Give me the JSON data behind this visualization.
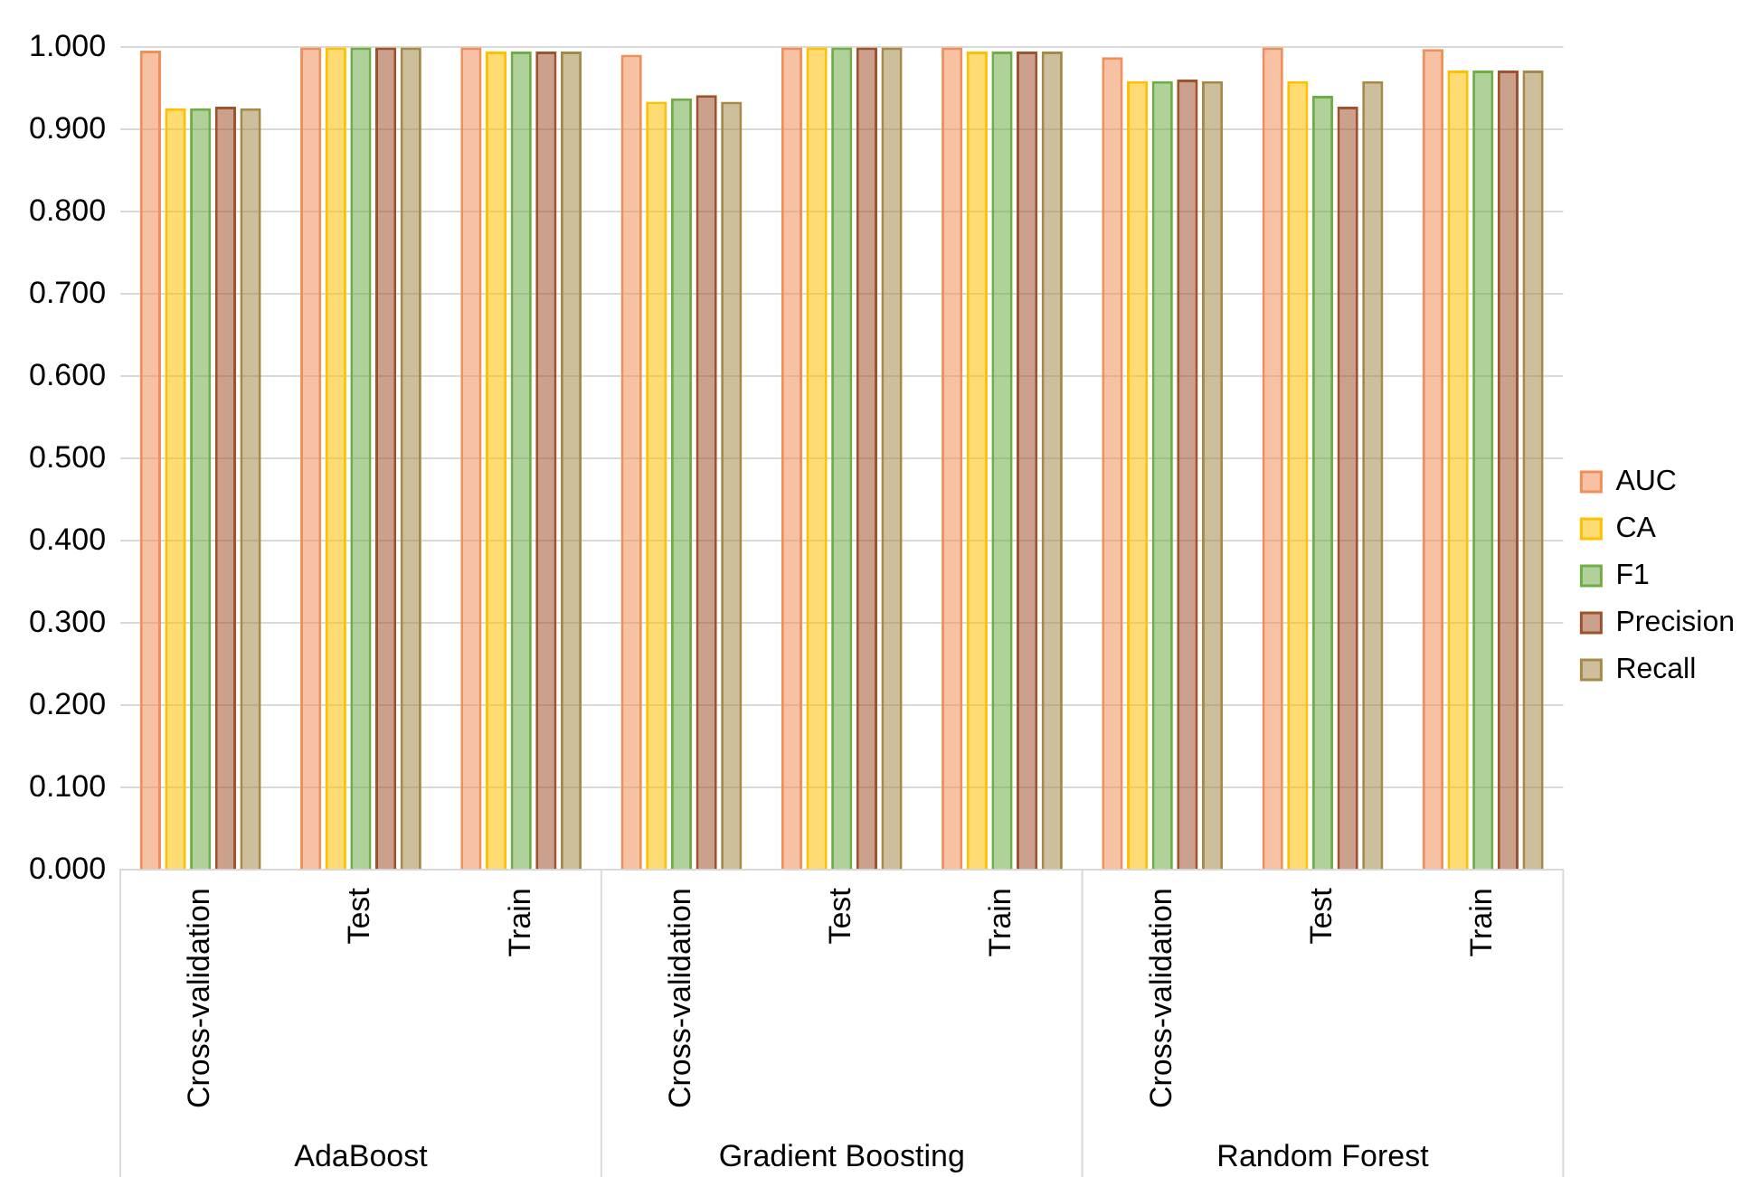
{
  "chart_data": {
    "type": "bar",
    "categories": [
      "Cross-validation",
      "Test",
      "Train",
      "Cross-validation",
      "Test",
      "Train",
      "Cross-validation",
      "Test",
      "Train"
    ],
    "annotations": [
      "AdaBoost",
      "Gradient Boosting",
      "Random Forest"
    ],
    "series": [
      {
        "name": "AUC",
        "color": "#f08f5a",
        "values": [
          0.996,
          1.0,
          1.0,
          0.991,
          1.0,
          1.0,
          0.988,
          1.0,
          0.998
        ]
      },
      {
        "name": "CA",
        "color": "#ffc000",
        "values": [
          0.926,
          1.0,
          0.995,
          0.934,
          1.0,
          0.995,
          0.959,
          0.959,
          0.972
        ]
      },
      {
        "name": "F1",
        "color": "#70ad47",
        "values": [
          0.926,
          1.0,
          0.995,
          0.938,
          1.0,
          0.995,
          0.959,
          0.941,
          0.972
        ]
      },
      {
        "name": "Precision",
        "color": "#a0522d",
        "values": [
          0.928,
          1.0,
          0.995,
          0.942,
          1.0,
          0.995,
          0.961,
          0.928,
          0.972
        ]
      },
      {
        "name": "Recall",
        "color": "#a68a4a",
        "values": [
          0.926,
          1.0,
          0.995,
          0.934,
          1.0,
          0.995,
          0.959,
          0.959,
          0.972
        ]
      }
    ],
    "ylim": [
      0,
      1
    ],
    "yticks": [
      {
        "value": 0,
        "label": "0.000"
      },
      {
        "value": 0.1,
        "label": "0.100"
      },
      {
        "value": 0.2,
        "label": "0.200"
      },
      {
        "value": 0.3,
        "label": "0.300"
      },
      {
        "value": 0.4,
        "label": "0.400"
      },
      {
        "value": 0.5,
        "label": "0.500"
      },
      {
        "value": 0.6,
        "label": "0.600"
      },
      {
        "value": 0.7,
        "label": "0.700"
      },
      {
        "value": 0.8,
        "label": "0.800"
      },
      {
        "value": 0.9,
        "label": "0.900"
      },
      {
        "value": 1,
        "label": "1.000"
      }
    ],
    "grid": "y",
    "legend": "right"
  }
}
